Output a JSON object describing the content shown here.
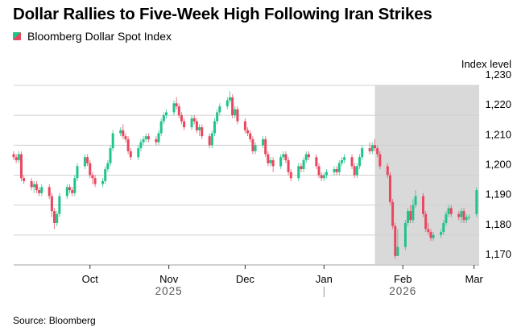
{
  "title": "Dollar Rallies to Five-Week High Following Iran Strikes",
  "source": "Source: Bloomberg",
  "chart_data": {
    "type": "candlestick",
    "title": "Dollar Rallies to Five-Week High Following Iran Strikes",
    "legend": [
      "Bloomberg Dollar Spot Index"
    ],
    "legend_placement": "top-left",
    "ylabel": "Index level",
    "ylim": [
      1170,
      1230
    ],
    "yticks": [
      1170,
      1180,
      1190,
      1200,
      1210,
      1220,
      1230
    ],
    "ytick_labels": [
      "1,170",
      "1,180",
      "1,190",
      "1,200",
      "1,210",
      "1,220",
      "1,230"
    ],
    "y_axis_side": "right",
    "xlim": [
      "2025-09-01",
      "2026-03-03"
    ],
    "xticks": [
      "2025-10-01",
      "2025-11-01",
      "2025-12-01",
      "2026-01-01",
      "2026-02-01",
      "2026-03-01"
    ],
    "xtick_labels": [
      "Oct",
      "Nov",
      "Dec",
      "Jan",
      "Feb",
      "Mar"
    ],
    "year_labels": [
      {
        "label": "2025",
        "at": "2025-11-01"
      },
      {
        "label": "2026",
        "at": "2026-02-01"
      }
    ],
    "year_divider": "2026-01-01",
    "grid": true,
    "shaded_range": [
      "2026-01-21",
      "2026-03-03"
    ],
    "colors": {
      "up": "#1fc48a",
      "down": "#e8475f",
      "shade": "#d9d9d9",
      "grid": "#d0d0d0"
    },
    "columns": [
      "date",
      "open",
      "high",
      "low",
      "close"
    ],
    "candles": [
      [
        "2025-09-01",
        1207,
        1208,
        1205,
        1206
      ],
      [
        "2025-09-02",
        1206,
        1207,
        1204,
        1205
      ],
      [
        "2025-09-03",
        1205,
        1208,
        1204,
        1207
      ],
      [
        "2025-09-04",
        1207,
        1208,
        1198,
        1199
      ],
      [
        "2025-09-05",
        1199,
        1200,
        1197,
        1198
      ],
      [
        "2025-09-08",
        1198,
        1199,
        1195,
        1196
      ],
      [
        "2025-09-09",
        1196,
        1198,
        1194,
        1197
      ],
      [
        "2025-09-10",
        1197,
        1198,
        1194,
        1195
      ],
      [
        "2025-09-11",
        1195,
        1196,
        1193,
        1194
      ],
      [
        "2025-09-12",
        1194,
        1197,
        1193,
        1196
      ],
      [
        "2025-09-15",
        1196,
        1197,
        1192,
        1193
      ],
      [
        "2025-09-16",
        1193,
        1194,
        1186,
        1188
      ],
      [
        "2025-09-17",
        1188,
        1189,
        1182,
        1184
      ],
      [
        "2025-09-18",
        1184,
        1188,
        1183,
        1187
      ],
      [
        "2025-09-19",
        1187,
        1194,
        1186,
        1193
      ],
      [
        "2025-09-22",
        1193,
        1197,
        1192,
        1196
      ],
      [
        "2025-09-23",
        1196,
        1197,
        1194,
        1195
      ],
      [
        "2025-09-24",
        1195,
        1196,
        1193,
        1194
      ],
      [
        "2025-09-25",
        1194,
        1200,
        1193,
        1199
      ],
      [
        "2025-09-26",
        1199,
        1204,
        1198,
        1203
      ],
      [
        "2025-09-29",
        1203,
        1207,
        1202,
        1206
      ],
      [
        "2025-09-30",
        1206,
        1207,
        1203,
        1204
      ],
      [
        "2025-10-01",
        1204,
        1205,
        1199,
        1200
      ],
      [
        "2025-10-02",
        1200,
        1201,
        1197,
        1199
      ],
      [
        "2025-10-03",
        1199,
        1200,
        1196,
        1197
      ],
      [
        "2025-10-06",
        1197,
        1199,
        1196,
        1198
      ],
      [
        "2025-10-07",
        1198,
        1203,
        1197,
        1202
      ],
      [
        "2025-10-08",
        1202,
        1205,
        1201,
        1204
      ],
      [
        "2025-10-09",
        1204,
        1210,
        1203,
        1209
      ],
      [
        "2025-10-10",
        1209,
        1215,
        1208,
        1214
      ],
      [
        "2025-10-13",
        1214,
        1216,
        1213,
        1215
      ],
      [
        "2025-10-14",
        1215,
        1217,
        1212,
        1213
      ],
      [
        "2025-10-15",
        1213,
        1214,
        1211,
        1212
      ],
      [
        "2025-10-16",
        1212,
        1213,
        1207,
        1208
      ],
      [
        "2025-10-17",
        1208,
        1209,
        1205,
        1206
      ],
      [
        "2025-10-20",
        1206,
        1210,
        1205,
        1209
      ],
      [
        "2025-10-21",
        1209,
        1212,
        1208,
        1211
      ],
      [
        "2025-10-22",
        1211,
        1213,
        1210,
        1212
      ],
      [
        "2025-10-23",
        1212,
        1214,
        1211,
        1213
      ],
      [
        "2025-10-24",
        1213,
        1214,
        1211,
        1212
      ],
      [
        "2025-10-27",
        1212,
        1213,
        1210,
        1211
      ],
      [
        "2025-10-28",
        1211,
        1215,
        1210,
        1214
      ],
      [
        "2025-10-29",
        1214,
        1219,
        1213,
        1218
      ],
      [
        "2025-10-30",
        1218,
        1221,
        1217,
        1220
      ],
      [
        "2025-10-31",
        1220,
        1222,
        1219,
        1221
      ],
      [
        "2025-11-03",
        1221,
        1225,
        1220,
        1224
      ],
      [
        "2025-11-04",
        1224,
        1226,
        1222,
        1223
      ],
      [
        "2025-11-05",
        1223,
        1224,
        1219,
        1220
      ],
      [
        "2025-11-06",
        1220,
        1221,
        1217,
        1218
      ],
      [
        "2025-11-07",
        1218,
        1219,
        1215,
        1216
      ],
      [
        "2025-11-10",
        1216,
        1220,
        1215,
        1219
      ],
      [
        "2025-11-11",
        1219,
        1220,
        1217,
        1218
      ],
      [
        "2025-11-12",
        1218,
        1219,
        1214,
        1215
      ],
      [
        "2025-11-13",
        1215,
        1217,
        1213,
        1216
      ],
      [
        "2025-11-14",
        1216,
        1217,
        1212,
        1213
      ],
      [
        "2025-11-17",
        1213,
        1214,
        1209,
        1210
      ],
      [
        "2025-11-18",
        1210,
        1215,
        1209,
        1214
      ],
      [
        "2025-11-19",
        1214,
        1219,
        1213,
        1218
      ],
      [
        "2025-11-20",
        1218,
        1222,
        1217,
        1221
      ],
      [
        "2025-11-21",
        1221,
        1224,
        1220,
        1223
      ],
      [
        "2025-11-24",
        1223,
        1226,
        1222,
        1225
      ],
      [
        "2025-11-25",
        1225,
        1228,
        1224,
        1226
      ],
      [
        "2025-11-26",
        1226,
        1227,
        1219,
        1220
      ],
      [
        "2025-11-27",
        1220,
        1223,
        1219,
        1222
      ],
      [
        "2025-11-28",
        1222,
        1223,
        1217,
        1218
      ],
      [
        "2025-12-01",
        1218,
        1219,
        1214,
        1215
      ],
      [
        "2025-12-02",
        1215,
        1216,
        1213,
        1214
      ],
      [
        "2025-12-03",
        1214,
        1215,
        1211,
        1212
      ],
      [
        "2025-12-04",
        1212,
        1213,
        1207,
        1208
      ],
      [
        "2025-12-05",
        1208,
        1211,
        1207,
        1210
      ],
      [
        "2025-12-08",
        1210,
        1213,
        1209,
        1212
      ],
      [
        "2025-12-09",
        1212,
        1213,
        1206,
        1207
      ],
      [
        "2025-12-10",
        1207,
        1208,
        1203,
        1204
      ],
      [
        "2025-12-11",
        1204,
        1206,
        1203,
        1205
      ],
      [
        "2025-12-12",
        1205,
        1206,
        1201,
        1203
      ],
      [
        "2025-12-15",
        1203,
        1207,
        1202,
        1206
      ],
      [
        "2025-12-16",
        1206,
        1208,
        1205,
        1207
      ],
      [
        "2025-12-17",
        1207,
        1208,
        1204,
        1205
      ],
      [
        "2025-12-18",
        1205,
        1206,
        1200,
        1201
      ],
      [
        "2025-12-19",
        1201,
        1202,
        1198,
        1199
      ],
      [
        "2025-12-22",
        1199,
        1204,
        1198,
        1203
      ],
      [
        "2025-12-23",
        1203,
        1204,
        1201,
        1202
      ],
      [
        "2025-12-24",
        1202,
        1206,
        1201,
        1205
      ],
      [
        "2025-12-25",
        1205,
        1208,
        1204,
        1207
      ],
      [
        "2025-12-26",
        1207,
        1208,
        1205,
        1206
      ],
      [
        "2025-12-29",
        1206,
        1207,
        1202,
        1203
      ],
      [
        "2025-12-30",
        1203,
        1204,
        1199,
        1200
      ],
      [
        "2025-12-31",
        1200,
        1201,
        1198,
        1199
      ],
      [
        "2026-01-01",
        1199,
        1201,
        1198,
        1200
      ],
      [
        "2026-01-02",
        1200,
        1202,
        1199,
        1201
      ],
      [
        "2026-01-05",
        1201,
        1203,
        1200,
        1202
      ],
      [
        "2026-01-06",
        1202,
        1203,
        1200,
        1201
      ],
      [
        "2026-01-07",
        1201,
        1205,
        1200,
        1204
      ],
      [
        "2026-01-08",
        1204,
        1206,
        1203,
        1205
      ],
      [
        "2026-01-09",
        1205,
        1207,
        1204,
        1206
      ],
      [
        "2026-01-12",
        1206,
        1207,
        1202,
        1203
      ],
      [
        "2026-01-13",
        1203,
        1204,
        1199,
        1200
      ],
      [
        "2026-01-14",
        1200,
        1204,
        1199,
        1203
      ],
      [
        "2026-01-15",
        1203,
        1207,
        1202,
        1206
      ],
      [
        "2026-01-16",
        1206,
        1210,
        1205,
        1209
      ],
      [
        "2026-01-19",
        1209,
        1211,
        1207,
        1208
      ],
      [
        "2026-01-20",
        1208,
        1211,
        1207,
        1210
      ],
      [
        "2026-01-21",
        1210,
        1212,
        1208,
        1209
      ],
      [
        "2026-01-22",
        1209,
        1210,
        1206,
        1207
      ],
      [
        "2026-01-23",
        1207,
        1208,
        1202,
        1203
      ],
      [
        "2026-01-26",
        1203,
        1204,
        1199,
        1200
      ],
      [
        "2026-01-27",
        1200,
        1201,
        1190,
        1191
      ],
      [
        "2026-01-28",
        1191,
        1192,
        1182,
        1183
      ],
      [
        "2026-01-29",
        1183,
        1184,
        1172,
        1173
      ],
      [
        "2026-01-30",
        1173,
        1182,
        1173,
        1176
      ],
      [
        "2026-02-02",
        1176,
        1185,
        1175,
        1184
      ],
      [
        "2026-02-03",
        1184,
        1189,
        1183,
        1188
      ],
      [
        "2026-02-04",
        1188,
        1190,
        1184,
        1185
      ],
      [
        "2026-02-05",
        1185,
        1192,
        1184,
        1190
      ],
      [
        "2026-02-06",
        1190,
        1195,
        1189,
        1193
      ],
      [
        "2026-02-09",
        1193,
        1194,
        1186,
        1187
      ],
      [
        "2026-02-10",
        1187,
        1188,
        1181,
        1182
      ],
      [
        "2026-02-11",
        1182,
        1184,
        1180,
        1181
      ],
      [
        "2026-02-12",
        1181,
        1182,
        1178,
        1179
      ],
      [
        "2026-02-13",
        1179,
        1181,
        1178,
        1180
      ],
      [
        "2026-02-16",
        1180,
        1182,
        1179,
        1181
      ],
      [
        "2026-02-17",
        1181,
        1185,
        1180,
        1184
      ],
      [
        "2026-02-18",
        1184,
        1188,
        1183,
        1187
      ],
      [
        "2026-02-19",
        1187,
        1190,
        1186,
        1189
      ],
      [
        "2026-02-20",
        1189,
        1190,
        1186,
        1187
      ],
      [
        "2026-02-23",
        1187,
        1188,
        1185,
        1186
      ],
      [
        "2026-02-24",
        1186,
        1189,
        1184,
        1188
      ],
      [
        "2026-02-25",
        1188,
        1189,
        1184,
        1185
      ],
      [
        "2026-02-26",
        1185,
        1187,
        1184,
        1186
      ],
      [
        "2026-02-27",
        1186,
        1187,
        1185,
        1186
      ],
      [
        "2026-03-02",
        1187,
        1196,
        1186,
        1195
      ]
    ]
  }
}
